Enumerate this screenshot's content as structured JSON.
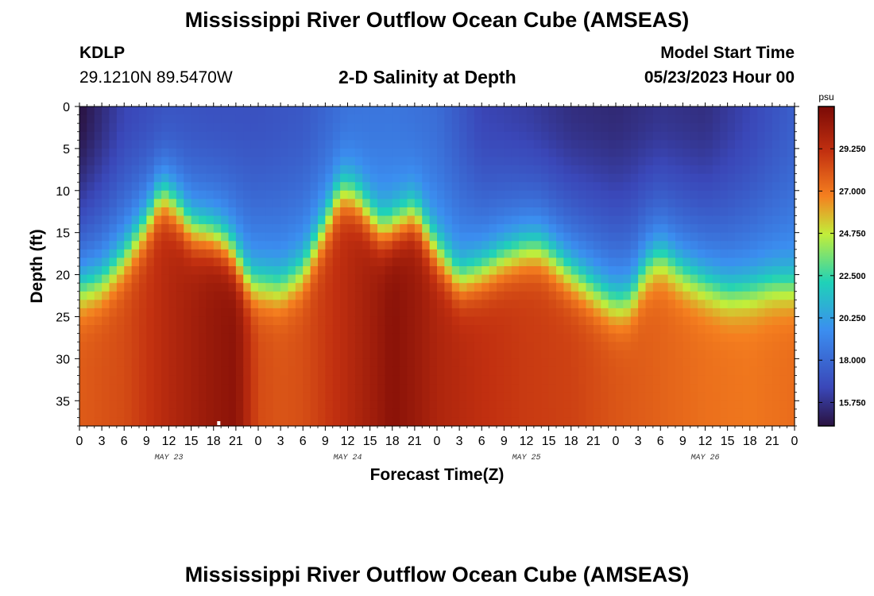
{
  "header": {
    "title": "Mississippi River Outflow Ocean Cube (AMSEAS)",
    "station_id": "KDLP",
    "station_coords": "29.1210N  89.5470W",
    "plot_title": "2-D Salinity at Depth",
    "model_start_label": "Model Start Time",
    "model_start_value": "05/23/2023 Hour 00"
  },
  "footer": {
    "title": "Mississippi River Outflow Ocean Cube (AMSEAS)"
  },
  "colors": {
    "low": "#2a1240",
    "deep_blue": "#3a47b8",
    "blue": "#3b8ef0",
    "cyan": "#1fd2b8",
    "green_yellow": "#c2ee3a",
    "orange": "#f57f1f",
    "red": "#c23010",
    "high": "#7a0a06"
  },
  "chart_data": {
    "type": "heatmap",
    "title": "2-D Salinity at Depth",
    "xlabel": "Forecast Time(Z)",
    "ylabel": "Depth (ft)",
    "x_unit": "forecast hour",
    "xlim": [
      0,
      96
    ],
    "ylim": [
      38,
      0
    ],
    "x_ticks": [
      0,
      3,
      6,
      9,
      12,
      15,
      18,
      21,
      24,
      27,
      30,
      33,
      36,
      39,
      42,
      45,
      48,
      51,
      54,
      57,
      60,
      63,
      66,
      69,
      72,
      75,
      78,
      81,
      84,
      87,
      90,
      93,
      96
    ],
    "x_tick_labels": [
      "0",
      "3",
      "6",
      "9",
      "12",
      "15",
      "18",
      "21",
      "0",
      "3",
      "6",
      "9",
      "12",
      "15",
      "18",
      "21",
      "0",
      "3",
      "6",
      "9",
      "12",
      "15",
      "18",
      "21",
      "0",
      "3",
      "6",
      "9",
      "12",
      "15",
      "18",
      "21",
      "0"
    ],
    "y_ticks": [
      0,
      5,
      10,
      15,
      20,
      25,
      30,
      35
    ],
    "y_tick_labels": [
      "0",
      "5",
      "10",
      "15",
      "20",
      "25",
      "30",
      "35"
    ],
    "day_labels": [
      {
        "x": 12,
        "label": "MAY 23"
      },
      {
        "x": 36,
        "label": "MAY 24"
      },
      {
        "x": 60,
        "label": "MAY 25"
      },
      {
        "x": 84,
        "label": "MAY 26"
      }
    ],
    "colorbar": {
      "unit": "psu",
      "range": [
        14.5,
        31.5
      ],
      "ticks": [
        15.75,
        18.0,
        20.25,
        22.5,
        24.75,
        27.0,
        29.25
      ],
      "tick_labels": [
        "15.750",
        "18.000",
        "20.250",
        "22.500",
        "24.750",
        "27.000",
        "29.250"
      ]
    },
    "halocline_depth_ft": {
      "hours": [
        0,
        3,
        6,
        9,
        11,
        13,
        15,
        18,
        20,
        23,
        27,
        30,
        33,
        35,
        37,
        40,
        41,
        45,
        48,
        51,
        54,
        57,
        60,
        62,
        66,
        70,
        72,
        74,
        76,
        78,
        81,
        84,
        87,
        90,
        93,
        96
      ],
      "depth": [
        22.5,
        21.5,
        18.5,
        14.5,
        11,
        12.5,
        15,
        15.8,
        17,
        21.5,
        22,
        20,
        14.5,
        10.5,
        11,
        14.5,
        15,
        13,
        17.5,
        21,
        20,
        18.5,
        17.5,
        17.5,
        20.5,
        23,
        24,
        23.5,
        20,
        18.5,
        20.5,
        21.8,
        22.8,
        22.5,
        21.8,
        21.8
      ]
    },
    "surface_salinity_psu": {
      "hours": [
        0,
        6,
        12,
        18,
        24,
        30,
        36,
        42,
        48,
        54,
        60,
        66,
        72,
        78,
        84,
        90,
        96
      ],
      "values": [
        14.5,
        16.5,
        17.2,
        17.0,
        17.0,
        17.3,
        18.5,
        18.6,
        18.2,
        16.5,
        16.2,
        15.6,
        15.4,
        15.8,
        15.6,
        16.5,
        17.6
      ]
    },
    "bottom_salinity_psu": {
      "hours": [
        0,
        6,
        12,
        18,
        21,
        24,
        27,
        30,
        36,
        40,
        42,
        45,
        48,
        54,
        60,
        66,
        72,
        78,
        84,
        90,
        96
      ],
      "values": [
        27.8,
        28.3,
        29.6,
        30.6,
        30.9,
        28.3,
        28.0,
        28.2,
        29.5,
        30.4,
        31.0,
        30.5,
        29.8,
        29.2,
        28.8,
        28.6,
        28.0,
        27.6,
        27.2,
        27.0,
        27.3
      ]
    }
  }
}
